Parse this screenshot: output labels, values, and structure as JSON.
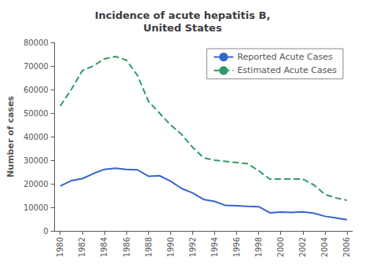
{
  "chart_data": {
    "type": "line",
    "title": "Incidence of acute hepatitis B,\nUnited States",
    "ylabel": "Number of cases",
    "x": [
      1980,
      1981,
      1982,
      1983,
      1984,
      1985,
      1986,
      1987,
      1988,
      1989,
      1990,
      1991,
      1992,
      1993,
      1994,
      1995,
      1996,
      1997,
      1998,
      1999,
      2000,
      2001,
      2002,
      2003,
      2004,
      2005,
      2006
    ],
    "series": [
      {
        "name": "Reported Acute Cases",
        "color": "#3366cc",
        "line_style": "solid",
        "values": [
          19015,
          21302,
          22177,
          24318,
          26115,
          26611,
          26107,
          25916,
          23177,
          23419,
          21102,
          18003,
          16126,
          13361,
          12517,
          10805,
          10637,
          10416,
          10258,
          7694,
          8036,
          7843,
          8064,
          7526,
          6212,
          5494,
          4758
        ]
      },
      {
        "name": "Estimated Acute Cases",
        "color": "#339966",
        "line_style": "dashed",
        "values": [
          53000,
          60000,
          68000,
          70000,
          73000,
          74000,
          72500,
          66000,
          55000,
          50000,
          45000,
          41000,
          35500,
          31000,
          30000,
          29500,
          29000,
          28500,
          25500,
          22000,
          22000,
          22000,
          22000,
          19500,
          15500,
          14000,
          13000
        ]
      }
    ],
    "xlim": [
      1979.5,
      2006.5
    ],
    "xticks": [
      1980,
      1982,
      1984,
      1986,
      1988,
      1990,
      1992,
      1994,
      1996,
      1998,
      2000,
      2002,
      2004,
      2006
    ],
    "ylim": [
      0,
      80000
    ],
    "yticks": [
      0,
      10000,
      20000,
      30000,
      40000,
      50000,
      60000,
      70000,
      80000
    ],
    "grid": false,
    "legend": "upper right"
  }
}
